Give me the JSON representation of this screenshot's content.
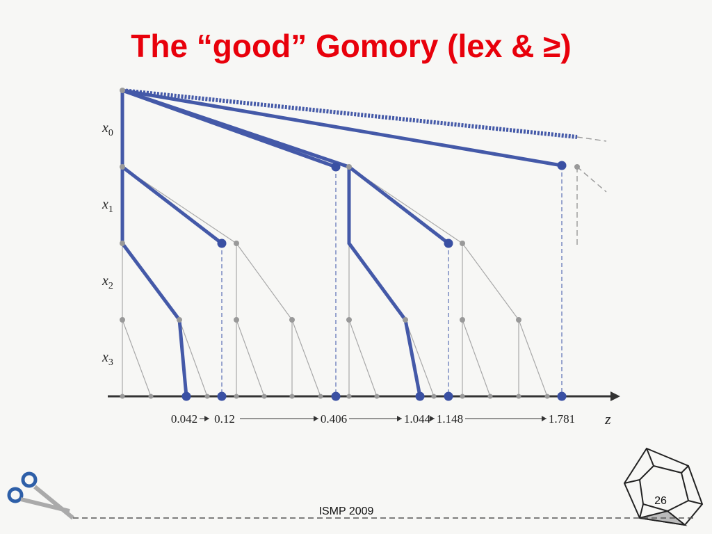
{
  "header": {
    "title": "The “good” Gomory  (lex & ≥)"
  },
  "diagram": {
    "row_labels": [
      {
        "var": "x",
        "sub": "0"
      },
      {
        "var": "x",
        "sub": "1"
      },
      {
        "var": "x",
        "sub": "2"
      },
      {
        "var": "x",
        "sub": "3"
      }
    ],
    "z_values": [
      "0.042",
      "0.12",
      "0.406",
      "1.044",
      "1.148",
      "1.781"
    ],
    "axis_label": "z"
  },
  "footer": {
    "event": "ISMP 2009",
    "page": "26"
  }
}
